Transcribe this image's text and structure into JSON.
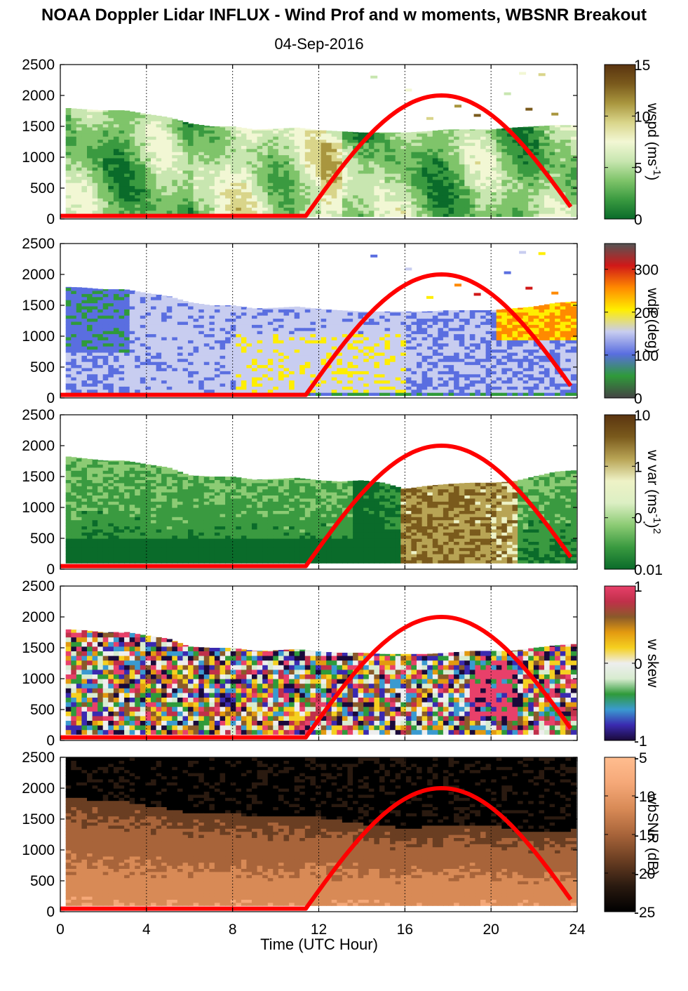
{
  "title": "NOAA Doppler Lidar INFLUX - Wind Prof and w moments, WBSNR Breakout",
  "subtitle": "04-Sep-2016",
  "x_axis": {
    "label": "Time (UTC Hour)",
    "range": [
      0,
      24
    ],
    "ticks": [
      0,
      4,
      8,
      12,
      16,
      20,
      24
    ],
    "dotted_gridlines_at": [
      4,
      8,
      12,
      16,
      20,
      24
    ]
  },
  "y_axis": {
    "range": [
      0,
      2500
    ],
    "ticks": [
      0,
      500,
      1000,
      1500,
      2000,
      2500
    ]
  },
  "chart_data": [
    {
      "type": "heatmap",
      "panel": "wspd",
      "colorbar_label": "wspd (ms-1)",
      "colorbar_label_parts": [
        "wspd (ms",
        "-1",
        ")"
      ],
      "colorbar_range": [
        0,
        15
      ],
      "colorbar_ticks": [
        0,
        5,
        10,
        15
      ],
      "colormap": [
        "#0a6b2a",
        "#3a9a40",
        "#7fc46a",
        "#c8e6b0",
        "#f2f7d4",
        "#d9d58a",
        "#a9963e",
        "#7a5a1c",
        "#5a3410"
      ],
      "data_top_m_by_hour": [
        [
          0.2,
          1800
        ],
        [
          1,
          1780
        ],
        [
          2,
          1760
        ],
        [
          3,
          1760
        ],
        [
          4,
          1700
        ],
        [
          5,
          1650
        ],
        [
          6,
          1550
        ],
        [
          7,
          1500
        ],
        [
          8,
          1500
        ],
        [
          9,
          1450
        ],
        [
          10,
          1460
        ],
        [
          11,
          1480
        ],
        [
          12,
          1440
        ],
        [
          13,
          1420
        ],
        [
          14,
          1400
        ],
        [
          15,
          1400
        ],
        [
          16,
          1400
        ],
        [
          17,
          1420
        ],
        [
          18,
          1450
        ],
        [
          19,
          1450
        ],
        [
          20,
          1450
        ],
        [
          21,
          1480
        ],
        [
          22,
          1500
        ],
        [
          23,
          1520
        ],
        [
          23.8,
          1520
        ]
      ],
      "sun_elevation_curve": true
    },
    {
      "type": "heatmap",
      "panel": "wdir",
      "colorbar_label": "wdir (deg)",
      "colorbar_range": [
        0,
        360
      ],
      "colorbar_ticks": [
        0,
        100,
        200,
        300
      ],
      "colormap": [
        "#444444",
        "#2f9a3a",
        "#5a6ee0",
        "#c8cdf0",
        "#ffee00",
        "#ff8a00",
        "#d01818",
        "#555555"
      ],
      "data_top_m_by_hour": [
        [
          0.2,
          1800
        ],
        [
          1,
          1790
        ],
        [
          2,
          1760
        ],
        [
          3,
          1760
        ],
        [
          4,
          1700
        ],
        [
          5,
          1650
        ],
        [
          6,
          1550
        ],
        [
          7,
          1500
        ],
        [
          8,
          1500
        ],
        [
          9,
          1450
        ],
        [
          10,
          1460
        ],
        [
          11,
          1480
        ],
        [
          12,
          1440
        ],
        [
          13,
          1420
        ],
        [
          14,
          1400
        ],
        [
          15,
          1400
        ],
        [
          16,
          1400
        ],
        [
          17,
          1400
        ],
        [
          18,
          1420
        ],
        [
          19,
          1420
        ],
        [
          20,
          1420
        ],
        [
          21,
          1450
        ],
        [
          22,
          1480
        ],
        [
          23,
          1540
        ],
        [
          23.8,
          1560
        ]
      ],
      "sun_elevation_curve": true
    },
    {
      "type": "heatmap",
      "panel": "w var",
      "colorbar_label": "w var (ms-1)2",
      "colorbar_label_parts": [
        "w var (ms",
        "-1",
        ")",
        "2"
      ],
      "colorbar_range": [
        0.01,
        10
      ],
      "colorbar_ticks": [
        0.01,
        0.1,
        1,
        10
      ],
      "colorbar_tick_labels": [
        "0.01",
        "0.",
        "1",
        "10"
      ],
      "colorbar_scale": "log",
      "colormap": [
        "#0a6b2a",
        "#3a9a40",
        "#8ccb74",
        "#dcefc4",
        "#eef2c6",
        "#b8a455",
        "#7a5a1c",
        "#5a3410"
      ],
      "data_top_m_by_hour": [
        [
          0.2,
          1830
        ],
        [
          1,
          1800
        ],
        [
          2,
          1760
        ],
        [
          3,
          1760
        ],
        [
          4,
          1700
        ],
        [
          5,
          1650
        ],
        [
          6,
          1520
        ],
        [
          7,
          1500
        ],
        [
          8,
          1500
        ],
        [
          9,
          1450
        ],
        [
          10,
          1460
        ],
        [
          11,
          1480
        ],
        [
          12,
          1440
        ],
        [
          13,
          1420
        ],
        [
          14,
          1440
        ],
        [
          15,
          1400
        ],
        [
          16,
          1300
        ],
        [
          17,
          1350
        ],
        [
          18,
          1380
        ],
        [
          19,
          1400
        ],
        [
          20,
          1400
        ],
        [
          21,
          1420
        ],
        [
          22,
          1500
        ],
        [
          23,
          1580
        ],
        [
          23.8,
          1600
        ]
      ],
      "sun_elevation_curve": true
    },
    {
      "type": "heatmap",
      "panel": "w skew",
      "colorbar_label": "w skew",
      "colorbar_range": [
        -1,
        1
      ],
      "colorbar_ticks": [
        -1,
        0,
        1
      ],
      "colormap": [
        "#1a0a3a",
        "#3a2ab0",
        "#3a9ad0",
        "#2f9a3a",
        "#d8ecd0",
        "#eeeeee",
        "#f5d020",
        "#e39a10",
        "#8a5a2a",
        "#c0304a",
        "#e8406a"
      ],
      "data_top_m_by_hour": [
        [
          0.2,
          1800
        ],
        [
          1,
          1790
        ],
        [
          2,
          1750
        ],
        [
          3,
          1760
        ],
        [
          4,
          1700
        ],
        [
          5,
          1650
        ],
        [
          6,
          1520
        ],
        [
          7,
          1500
        ],
        [
          8,
          1500
        ],
        [
          9,
          1450
        ],
        [
          10,
          1460
        ],
        [
          11,
          1480
        ],
        [
          12,
          1440
        ],
        [
          13,
          1420
        ],
        [
          14,
          1420
        ],
        [
          15,
          1400
        ],
        [
          16,
          1400
        ],
        [
          17,
          1400
        ],
        [
          18,
          1420
        ],
        [
          19,
          1450
        ],
        [
          20,
          1450
        ],
        [
          21,
          1450
        ],
        [
          22,
          1500
        ],
        [
          23,
          1540
        ],
        [
          23.8,
          1560
        ]
      ],
      "sun_elevation_curve": true
    },
    {
      "type": "heatmap",
      "panel": "wbSNR",
      "colorbar_label": "wbSNR (dB)",
      "colorbar_range": [
        -25,
        -5
      ],
      "colorbar_ticks": [
        -25,
        -20,
        -15,
        -10,
        -5
      ],
      "colorbar_tick_labels": [
        "-25",
        "-20",
        "-15",
        "-10",
        "-5"
      ],
      "colormap": [
        "#000000",
        "#2a1a10",
        "#6a3e22",
        "#a8643a",
        "#d88a56",
        "#f5a878",
        "#ffbd8f"
      ],
      "data_top_m_by_hour": [
        [
          0.2,
          1820
        ],
        [
          1,
          1820
        ],
        [
          2,
          1760
        ],
        [
          3,
          1760
        ],
        [
          4,
          1700
        ],
        [
          5,
          1650
        ],
        [
          6,
          1580
        ],
        [
          7,
          1560
        ],
        [
          8,
          1560
        ],
        [
          9,
          1540
        ],
        [
          10,
          1530
        ],
        [
          11,
          1520
        ],
        [
          12,
          1500
        ],
        [
          13,
          1460
        ],
        [
          14,
          1400
        ],
        [
          15,
          1380
        ],
        [
          16,
          1320
        ],
        [
          17,
          1360
        ],
        [
          18,
          1380
        ],
        [
          19,
          1400
        ],
        [
          20,
          1380
        ],
        [
          21,
          1300
        ],
        [
          22,
          1260
        ],
        [
          23,
          1280
        ],
        [
          23.8,
          1300
        ]
      ],
      "sun_elevation_curve": true
    }
  ],
  "sun_curve": {
    "color": "#ff0000",
    "points_hour_value": [
      [
        0,
        50
      ],
      [
        11.4,
        50
      ],
      [
        12.5,
        500
      ],
      [
        14,
        1150
      ],
      [
        16,
        1750
      ],
      [
        17.7,
        2000
      ],
      [
        19.5,
        1780
      ],
      [
        21.5,
        1130
      ],
      [
        23,
        520
      ],
      [
        23.8,
        180
      ]
    ]
  }
}
